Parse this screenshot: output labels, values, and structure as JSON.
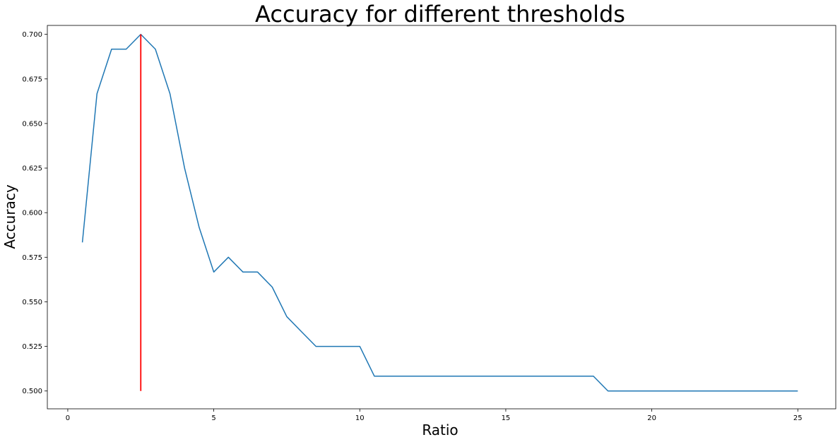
{
  "chart_data": {
    "type": "line",
    "title": "Accuracy for different thresholds",
    "xlabel": "Ratio",
    "ylabel": "Accuracy",
    "xlim": [
      -0.7,
      26.3
    ],
    "ylim": [
      0.49,
      0.705
    ],
    "xticks": [
      "0",
      "5",
      "10",
      "15",
      "20",
      "25"
    ],
    "yticks": [
      "0.500",
      "0.525",
      "0.550",
      "0.575",
      "0.600",
      "0.625",
      "0.650",
      "0.675",
      "0.700"
    ],
    "grid": false,
    "series": [
      {
        "color": "#1f77b4",
        "x": [
          0.5,
          1.0,
          1.5,
          2.0,
          2.5,
          3.0,
          3.5,
          4.0,
          4.5,
          5.0,
          5.5,
          6.0,
          6.5,
          7.0,
          7.5,
          8.0,
          8.5,
          9.0,
          9.5,
          10.0,
          10.5,
          11.0,
          11.5,
          12.0,
          12.5,
          13.0,
          13.5,
          14.0,
          14.5,
          15.0,
          15.5,
          16.0,
          16.5,
          17.0,
          17.5,
          18.0,
          18.5,
          19.0,
          19.5,
          20.0,
          20.5,
          21.0,
          21.5,
          22.0,
          22.5,
          23.0,
          23.5,
          24.0,
          24.5,
          25.0
        ],
        "y": [
          0.5833,
          0.6667,
          0.6917,
          0.6917,
          0.7,
          0.6917,
          0.6667,
          0.625,
          0.5917,
          0.5667,
          0.575,
          0.5667,
          0.5667,
          0.5583,
          0.5417,
          0.5333,
          0.525,
          0.525,
          0.525,
          0.525,
          0.5083,
          0.5083,
          0.5083,
          0.5083,
          0.5083,
          0.5083,
          0.5083,
          0.5083,
          0.5083,
          0.5083,
          0.5083,
          0.5083,
          0.5083,
          0.5083,
          0.5083,
          0.5083,
          0.5,
          0.5,
          0.5,
          0.5,
          0.5,
          0.5,
          0.5,
          0.5,
          0.5,
          0.5,
          0.5,
          0.5,
          0.5,
          0.5
        ]
      }
    ],
    "vline": {
      "x": 2.5,
      "ymin": 0.5,
      "ymax": 0.7,
      "color": "#ff0000"
    }
  }
}
